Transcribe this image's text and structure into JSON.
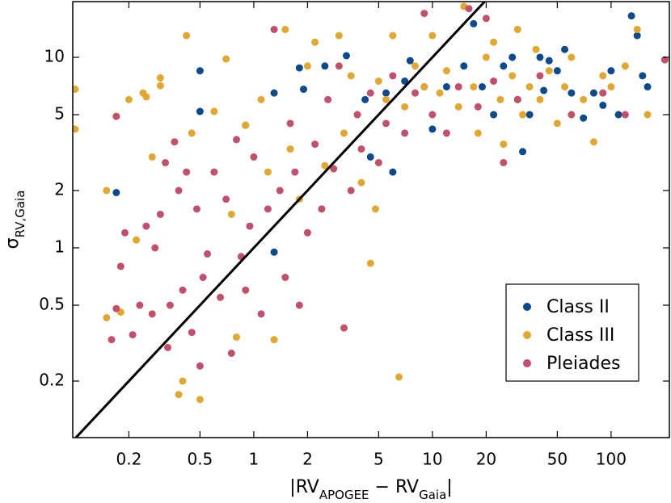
{
  "chart_data": {
    "type": "scatter",
    "log_x": true,
    "log_y": true,
    "xlabel": [
      {
        "text": "|RV"
      },
      {
        "text": "APOGEE",
        "sub": true
      },
      {
        "text": " − RV"
      },
      {
        "text": "Gaia",
        "sub": true
      },
      {
        "text": "|"
      }
    ],
    "ylabel": [
      {
        "text": "σ"
      },
      {
        "text": "RV,Gaia",
        "sub": true
      }
    ],
    "xlim": [
      0.097,
      212
    ],
    "ylim": [
      0.101,
      19.6
    ],
    "xticks": [
      0.2,
      0.5,
      1,
      2,
      5,
      10,
      20,
      50,
      100
    ],
    "yticks": [
      0.2,
      0.5,
      1,
      2,
      5,
      10
    ],
    "legend": "lower right",
    "series": [
      {
        "name": "Class II",
        "color": "#0d4a8c",
        "x": [
          0.17,
          0.5,
          0.5,
          0.9,
          1.3,
          1.3,
          1.8,
          1.9,
          2.5,
          3.3,
          4.2,
          4.5,
          5.5,
          6,
          7,
          7.5,
          9,
          10,
          12,
          15,
          17,
          19,
          22,
          25,
          28,
          30,
          32,
          35,
          40,
          42,
          45,
          50,
          55,
          60,
          70,
          80,
          90,
          100,
          110,
          130,
          140,
          150,
          160
        ],
        "values": [
          1.95,
          8.5,
          5.2,
          4.4,
          0.95,
          6.5,
          8.8,
          6.8,
          9.0,
          10.2,
          6,
          3,
          6.5,
          2.5,
          7.5,
          9.6,
          7,
          4.2,
          7,
          9,
          15,
          7,
          5,
          9,
          10,
          6,
          3.2,
          5,
          10,
          6.7,
          9.6,
          8.5,
          11,
          6.5,
          4.8,
          6.5,
          5.6,
          8.5,
          5,
          16.5,
          13,
          8,
          7
        ]
      },
      {
        "name": "Class III",
        "color": "#e0a832",
        "x": [
          0.1,
          0.1,
          0.15,
          0.15,
          0.2,
          0.18,
          0.25,
          0.24,
          0.3,
          0.3,
          0.27,
          0.22,
          0.38,
          0.4,
          0.42,
          0.5,
          0.45,
          0.6,
          0.7,
          0.75,
          0.8,
          0.9,
          1.1,
          1.3,
          1.2,
          1.5,
          1.6,
          1.8,
          2,
          2.2,
          2.5,
          3,
          3.2,
          3.5,
          4,
          4.5,
          4.8,
          5,
          5.5,
          6,
          6.5,
          7,
          8,
          9,
          10,
          11,
          12,
          14,
          15,
          17,
          18,
          20,
          22,
          24,
          25,
          28,
          30,
          32,
          35,
          38,
          40,
          45,
          50,
          55,
          60,
          70,
          80,
          90,
          100,
          120,
          140,
          160
        ],
        "values": [
          6.8,
          4.2,
          0.43,
          2,
          6,
          0.46,
          6.2,
          6.5,
          7.8,
          7.1,
          3,
          1.1,
          0.17,
          0.2,
          13,
          0.16,
          4,
          5.2,
          9.8,
          1.5,
          0.34,
          4.4,
          6,
          0.33,
          2.5,
          14,
          3.3,
          1.8,
          9,
          12,
          2.7,
          13,
          4,
          8,
          2.2,
          0.83,
          1.6,
          7.5,
          6,
          13,
          0.21,
          5.5,
          9,
          7,
          13,
          6.5,
          8.5,
          5.5,
          18.5,
          7,
          4,
          10,
          12,
          6,
          3.5,
          8,
          14,
          5,
          7,
          11,
          6,
          8.5,
          4.5,
          7,
          10,
          6,
          3.6,
          8,
          7,
          9,
          14,
          5
        ]
      },
      {
        "name": "Pleiades",
        "color": "#c1506b",
        "x": [
          0.17,
          0.16,
          0.17,
          0.18,
          0.19,
          0.21,
          0.23,
          0.25,
          0.27,
          0.28,
          0.3,
          0.32,
          0.33,
          0.34,
          0.36,
          0.38,
          0.4,
          0.42,
          0.45,
          0.48,
          0.5,
          0.52,
          0.55,
          0.6,
          0.65,
          0.7,
          0.75,
          0.8,
          0.85,
          0.9,
          0.95,
          1,
          1.1,
          1.2,
          1.3,
          1.4,
          1.5,
          1.6,
          1.7,
          1.8,
          2,
          2.2,
          2.4,
          2.6,
          2.8,
          3,
          3.2,
          3.5,
          3.8,
          4,
          4.5,
          5,
          5.5,
          6,
          7,
          8,
          9,
          10,
          12,
          14,
          16,
          18,
          20,
          22,
          25,
          30,
          40,
          60,
          90,
          120,
          200
        ],
        "values": [
          4.9,
          0.33,
          0.48,
          0.8,
          1.2,
          0.35,
          0.5,
          1.3,
          0.45,
          1,
          1.5,
          2.8,
          0.3,
          0.5,
          3.6,
          2,
          0.6,
          2.5,
          0.36,
          1.6,
          0.24,
          0.7,
          0.93,
          2.5,
          0.55,
          1.8,
          0.28,
          3.7,
          0.9,
          0.6,
          1.3,
          3,
          0.45,
          1.6,
          14,
          2,
          0.7,
          4.5,
          2.5,
          0.5,
          1.2,
          3.5,
          1.6,
          6,
          2.6,
          9,
          0.38,
          2,
          5,
          3.3,
          6.5,
          2.8,
          4.5,
          8,
          4,
          6.5,
          17,
          5,
          4,
          7,
          18,
          5.5,
          16,
          7.5,
          2.8,
          6,
          8,
          5,
          6.5,
          5,
          9.7
        ]
      }
    ]
  }
}
